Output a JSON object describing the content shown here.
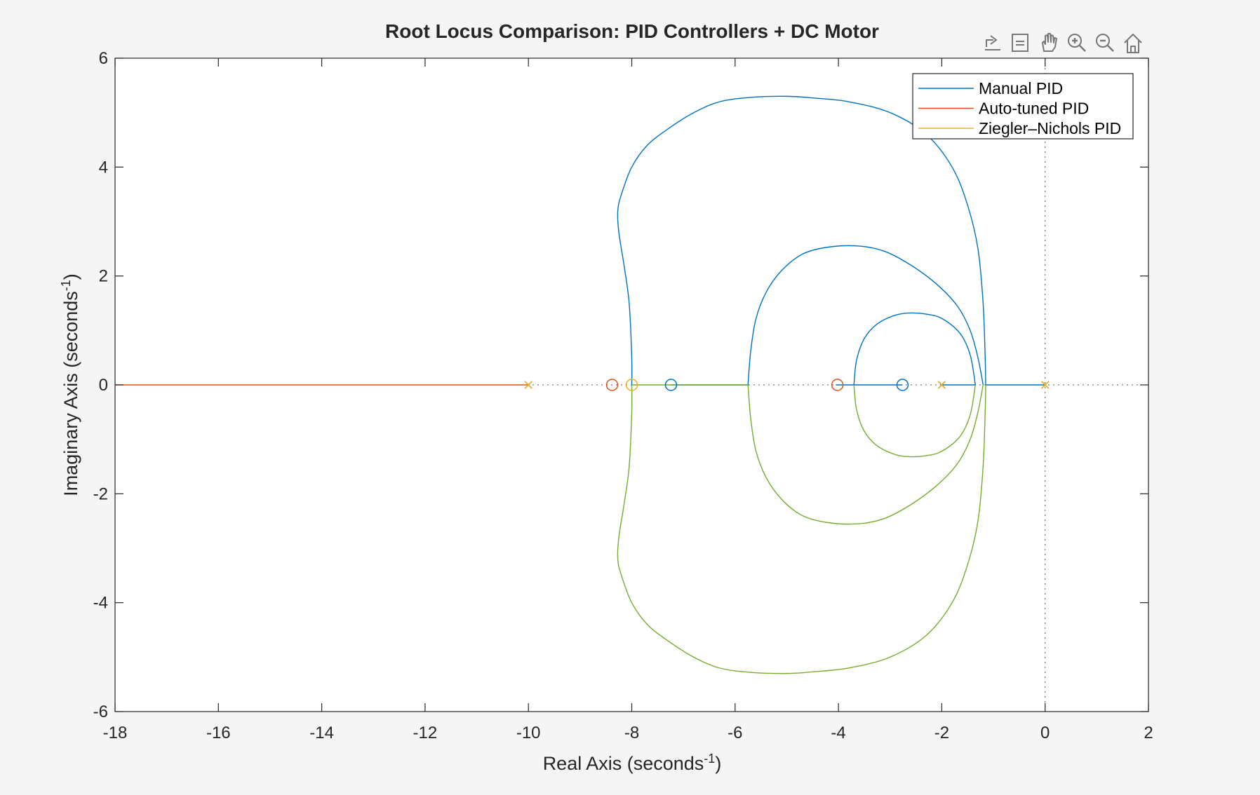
{
  "chart_data": {
    "type": "line",
    "title": "Root Locus Comparison: PID Controllers + DC Motor",
    "xlabel": "Real  Axis  (seconds",
    "xlabel_sup": "-1",
    "xlabel_end": ")",
    "ylabel": "Imaginary  Axis  (seconds",
    "ylabel_sup": "-1",
    "ylabel_end": ")",
    "xlim": [
      -18,
      2
    ],
    "ylim": [
      -6,
      6
    ],
    "xticks": [
      -18,
      -16,
      -14,
      -12,
      -10,
      -8,
      -6,
      -4,
      -2,
      0,
      2
    ],
    "xtick_labels": [
      "-18",
      "-16",
      "-14",
      "-12",
      "-10",
      "-8",
      "-6",
      "-4",
      "-2",
      "0",
      "2"
    ],
    "yticks": [
      -6,
      -4,
      -2,
      0,
      2,
      4,
      6
    ],
    "ytick_labels": [
      "-6",
      "-4",
      "-2",
      "0",
      "2",
      "4",
      "6"
    ],
    "grid": false,
    "legend_position": "top-right",
    "series": [
      {
        "name": "Manual PID",
        "color": "#0072BD",
        "poles": [
          [
            0,
            0
          ],
          [
            -2,
            0
          ],
          [
            -10,
            0
          ]
        ],
        "zeros": [
          [
            -2.76,
            0
          ],
          [
            -7.24,
            0
          ]
        ],
        "branches": [
          [
            [
              0,
              0
            ],
            [
              -1.15,
              0
            ]
          ],
          [
            [
              -2,
              0
            ],
            [
              -1.35,
              0
            ]
          ],
          [
            [
              -4.05,
              0
            ],
            [
              -2.76,
              0
            ]
          ],
          [
            [
              -7.24,
              0
            ],
            [
              -5.75,
              0
            ]
          ],
          [
            [
              -1.15,
              0
            ],
            [
              -1.16,
              0.5
            ],
            [
              -1.2,
              1.5
            ],
            [
              -1.3,
              2.5
            ],
            [
              -1.5,
              3.3
            ],
            [
              -1.8,
              4.0
            ],
            [
              -2.3,
              4.6
            ],
            [
              -3.0,
              5.0
            ],
            [
              -3.8,
              5.2
            ],
            [
              -4.5,
              5.27
            ],
            [
              -5.0,
              5.3
            ],
            [
              -5.7,
              5.28
            ],
            [
              -6.3,
              5.2
            ],
            [
              -6.8,
              5.0
            ],
            [
              -7.3,
              4.7
            ],
            [
              -7.7,
              4.4
            ],
            [
              -8.0,
              4.0
            ],
            [
              -8.2,
              3.5
            ],
            [
              -8.27,
              3.2
            ],
            [
              -8.25,
              2.8
            ],
            [
              -8.15,
              2.2
            ],
            [
              -8.05,
              1.5
            ],
            [
              -8.0,
              0.5
            ],
            [
              -8.0,
              0
            ]
          ],
          [
            [
              -1.35,
              0
            ],
            [
              -1.45,
              0.55
            ],
            [
              -1.65,
              0.95
            ],
            [
              -2.0,
              1.22
            ],
            [
              -2.3,
              1.3
            ],
            [
              -2.6,
              1.32
            ],
            [
              -2.9,
              1.28
            ],
            [
              -3.25,
              1.12
            ],
            [
              -3.5,
              0.85
            ],
            [
              -3.65,
              0.45
            ],
            [
              -3.7,
              0
            ]
          ],
          [
            [
              -5.75,
              0
            ],
            [
              -5.7,
              0.6
            ],
            [
              -5.6,
              1.2
            ],
            [
              -5.4,
              1.7
            ],
            [
              -5.1,
              2.1
            ],
            [
              -4.7,
              2.4
            ],
            [
              -4.2,
              2.53
            ],
            [
              -3.6,
              2.55
            ],
            [
              -3.1,
              2.45
            ],
            [
              -2.6,
              2.2
            ],
            [
              -2.1,
              1.85
            ],
            [
              -1.7,
              1.45
            ],
            [
              -1.45,
              1.0
            ],
            [
              -1.3,
              0.5
            ],
            [
              -1.2,
              0
            ]
          ]
        ]
      },
      {
        "name": "Auto-tuned PID",
        "color": "#D95319",
        "poles": [
          [
            0,
            0
          ],
          [
            -2,
            0
          ],
          [
            -10,
            0
          ]
        ],
        "zeros": [
          [
            -4.02,
            0
          ],
          [
            -8.38,
            0
          ]
        ],
        "branches": [
          [
            [
              -10,
              0
            ],
            [
              -18,
              0
            ]
          ]
        ]
      },
      {
        "name": "Ziegler–Nichols PID",
        "color": "#EDB120",
        "poles": [
          [
            0,
            0
          ],
          [
            -2,
            0
          ],
          [
            -10,
            0
          ]
        ],
        "zeros": [
          [
            -8.0,
            0
          ]
        ],
        "branches": []
      },
      {
        "name": "",
        "color": "#77AC30",
        "poles": [],
        "zeros": [],
        "branches": [
          [
            [
              -8.0,
              0
            ],
            [
              -5.75,
              0
            ]
          ],
          [
            [
              -1.15,
              0
            ],
            [
              -1.16,
              -0.5
            ],
            [
              -1.2,
              -1.5
            ],
            [
              -1.3,
              -2.5
            ],
            [
              -1.5,
              -3.3
            ],
            [
              -1.8,
              -4.0
            ],
            [
              -2.3,
              -4.6
            ],
            [
              -3.0,
              -5.0
            ],
            [
              -3.8,
              -5.2
            ],
            [
              -4.5,
              -5.27
            ],
            [
              -5.0,
              -5.3
            ],
            [
              -5.7,
              -5.28
            ],
            [
              -6.3,
              -5.2
            ],
            [
              -6.8,
              -5.0
            ],
            [
              -7.3,
              -4.7
            ],
            [
              -7.7,
              -4.4
            ],
            [
              -8.0,
              -4.0
            ],
            [
              -8.2,
              -3.5
            ],
            [
              -8.27,
              -3.2
            ],
            [
              -8.25,
              -2.8
            ],
            [
              -8.15,
              -2.2
            ],
            [
              -8.05,
              -1.5
            ],
            [
              -8.0,
              -0.5
            ],
            [
              -8.0,
              0
            ]
          ],
          [
            [
              -1.35,
              0
            ],
            [
              -1.45,
              -0.55
            ],
            [
              -1.65,
              -0.95
            ],
            [
              -2.0,
              -1.22
            ],
            [
              -2.3,
              -1.3
            ],
            [
              -2.6,
              -1.32
            ],
            [
              -2.9,
              -1.28
            ],
            [
              -3.25,
              -1.12
            ],
            [
              -3.5,
              -0.85
            ],
            [
              -3.65,
              -0.45
            ],
            [
              -3.7,
              0
            ]
          ],
          [
            [
              -5.75,
              0
            ],
            [
              -5.7,
              -0.6
            ],
            [
              -5.6,
              -1.2
            ],
            [
              -5.4,
              -1.7
            ],
            [
              -5.1,
              -2.1
            ],
            [
              -4.7,
              -2.4
            ],
            [
              -4.2,
              -2.53
            ],
            [
              -3.6,
              -2.55
            ],
            [
              -3.1,
              -2.45
            ],
            [
              -2.6,
              -2.2
            ],
            [
              -2.1,
              -1.85
            ],
            [
              -1.7,
              -1.45
            ],
            [
              -1.45,
              -1.0
            ],
            [
              -1.3,
              -0.5
            ],
            [
              -1.2,
              0
            ]
          ]
        ]
      }
    ]
  },
  "toolbar": {
    "icons": [
      "export-icon",
      "data-tips-icon",
      "pan-hand-icon",
      "zoom-in-icon",
      "zoom-out-icon",
      "home-icon"
    ]
  }
}
